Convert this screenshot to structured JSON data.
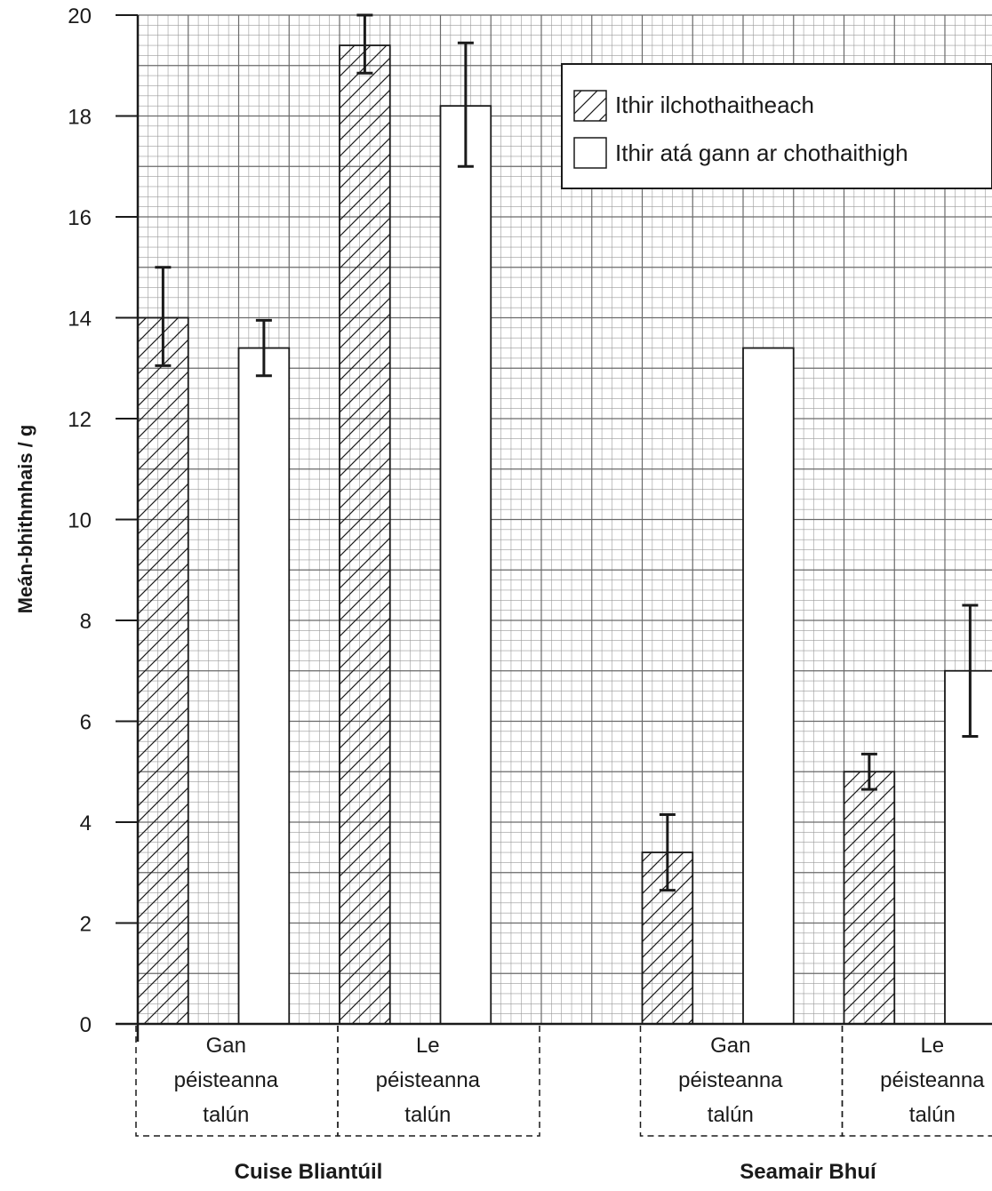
{
  "chart_data": {
    "type": "bar",
    "ylabel": "Meán-bhithmhais / g",
    "ylim": [
      0,
      20
    ],
    "yticks": [
      "0",
      "2",
      "4",
      "6",
      "8",
      "10",
      "12",
      "14",
      "16",
      "18",
      "20"
    ],
    "grid": true,
    "legend_position": "top-right",
    "series": [
      {
        "name": "Ithir ilchothaitheach",
        "pattern": "hatched"
      },
      {
        "name": "Ithir atá gann ar chothaithigh",
        "pattern": "plain"
      }
    ],
    "groups": [
      {
        "name": "Cuise Bliantúil",
        "categories": [
          {
            "label_lines": [
              "Gan",
              "péisteanna",
              "talún"
            ],
            "values": [
              14.0,
              13.4
            ],
            "errors": [
              [
                13.05,
                15.0
              ],
              [
                12.85,
                13.95
              ]
            ]
          },
          {
            "label_lines": [
              "Le",
              "péisteanna",
              "talún"
            ],
            "values": [
              19.4,
              18.2
            ],
            "errors": [
              [
                18.85,
                20.0
              ],
              [
                17.0,
                19.45
              ]
            ]
          }
        ]
      },
      {
        "name": "Seamair Bhuí",
        "categories": [
          {
            "label_lines": [
              "Gan",
              "péisteanna",
              "talún"
            ],
            "values": [
              3.4,
              13.4
            ],
            "errors": [
              [
                2.65,
                4.15
              ],
              null
            ]
          },
          {
            "label_lines": [
              "Le",
              "péisteanna",
              "talún"
            ],
            "values": [
              5.0,
              7.0
            ],
            "errors": [
              [
                4.65,
                5.35
              ],
              [
                5.7,
                8.3
              ]
            ]
          }
        ]
      }
    ]
  }
}
